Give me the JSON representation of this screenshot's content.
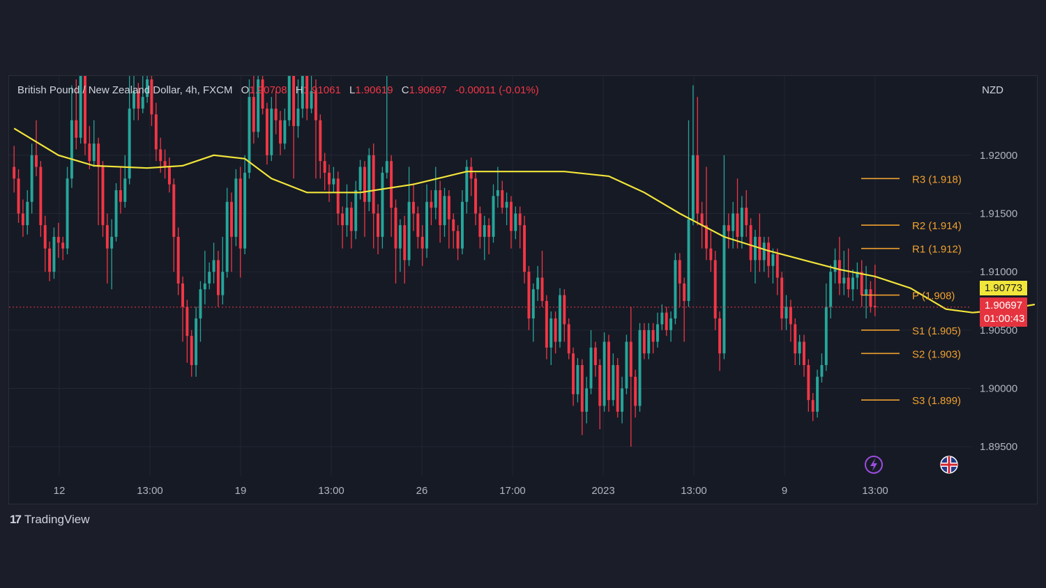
{
  "legend": {
    "symbol": "British Pound / New Zealand Dollar, 4h, FXCM",
    "open_label": "O",
    "open": "1.90708",
    "high_label": "H",
    "high": "1.91061",
    "low_label": "L",
    "low": "1.90619",
    "close_label": "C",
    "close": "1.90697",
    "change": "-0.00011 (-0.01%)"
  },
  "currency": "NZD",
  "price_tags": {
    "ma_value": "1.90773",
    "close_value": "1.90697",
    "countdown": "01:00:43"
  },
  "branding": {
    "logo_text": "TradingView",
    "logo_mark": "17"
  },
  "colors": {
    "up": "#26a69a",
    "down": "#f23645",
    "ma": "#f2e53a",
    "pivot_lines": "#f0a12e",
    "grid": "#232734",
    "background": "#161a25"
  },
  "chart_data": {
    "type": "candlestick",
    "timeframe": "4h",
    "y_axis": {
      "ticks": [
        "1.92000",
        "1.91500",
        "1.91000",
        "1.90500",
        "1.90000",
        "1.89500"
      ],
      "ylim": [
        1.8925,
        1.9268
      ]
    },
    "x_axis": {
      "ticks": [
        "12",
        "13:00",
        "19",
        "13:00",
        "26",
        "17:00",
        "2023",
        "13:00",
        "9",
        "13:00"
      ]
    },
    "pivot_levels": [
      {
        "label": "R3 (1.918)",
        "value": 1.918
      },
      {
        "label": "R2 (1.914)",
        "value": 1.914
      },
      {
        "label": "R1 (1.912)",
        "value": 1.912
      },
      {
        "label": "P (1.908)",
        "value": 1.908
      },
      {
        "label": "S1 (1.905)",
        "value": 1.905
      },
      {
        "label": "S2 (1.903)",
        "value": 1.903
      },
      {
        "label": "S3 (1.899)",
        "value": 1.899
      }
    ],
    "current_price": 1.90697,
    "moving_average": [
      [
        0,
        1.9223
      ],
      [
        10,
        1.92
      ],
      [
        18,
        1.9191
      ],
      [
        30,
        1.9189
      ],
      [
        38,
        1.9191
      ],
      [
        45,
        1.92
      ],
      [
        52,
        1.9197
      ],
      [
        58,
        1.918
      ],
      [
        66,
        1.9168
      ],
      [
        78,
        1.9168
      ],
      [
        90,
        1.9175
      ],
      [
        102,
        1.9186
      ],
      [
        112,
        1.9186
      ],
      [
        124,
        1.9186
      ],
      [
        134,
        1.9182
      ],
      [
        142,
        1.9168
      ],
      [
        150,
        1.915
      ],
      [
        160,
        1.913
      ],
      [
        170,
        1.9118
      ],
      [
        178,
        1.911
      ],
      [
        186,
        1.9102
      ],
      [
        194,
        1.9096
      ],
      [
        202,
        1.9086
      ],
      [
        210,
        1.9068
      ],
      [
        216,
        1.9065
      ],
      [
        224,
        1.9068
      ],
      [
        230,
        1.9072
      ]
    ],
    "candles": [
      [
        1.919,
        1.918,
        1.9208,
        1.9168
      ],
      [
        1.918,
        1.915,
        1.9188,
        1.9142
      ],
      [
        1.915,
        1.914,
        1.9162,
        1.913
      ],
      [
        1.914,
        1.916,
        1.917,
        1.9132
      ],
      [
        1.916,
        1.92,
        1.921,
        1.915
      ],
      [
        1.92,
        1.919,
        1.923,
        1.9182
      ],
      [
        1.919,
        1.914,
        1.9195,
        1.913
      ],
      [
        1.914,
        1.912,
        1.9148,
        1.91
      ],
      [
        1.912,
        1.91,
        1.9126,
        1.9092
      ],
      [
        1.91,
        1.913,
        1.9138,
        1.9094
      ],
      [
        1.913,
        1.9125,
        1.9142,
        1.9112
      ],
      [
        1.9125,
        1.912,
        1.913,
        1.911
      ],
      [
        1.912,
        1.918,
        1.919,
        1.9115
      ],
      [
        1.918,
        1.923,
        1.926,
        1.9172
      ],
      [
        1.923,
        1.9215,
        1.9265,
        1.9205
      ],
      [
        1.9215,
        1.927,
        1.928,
        1.921
      ],
      [
        1.927,
        1.921,
        1.9275,
        1.92
      ],
      [
        1.921,
        1.9195,
        1.9225,
        1.9188
      ],
      [
        1.9195,
        1.921,
        1.923,
        1.919
      ],
      [
        1.921,
        1.919,
        1.9215,
        1.914
      ],
      [
        1.919,
        1.914,
        1.9195,
        1.913
      ],
      [
        1.914,
        1.912,
        1.915,
        1.909
      ],
      [
        1.912,
        1.913,
        1.9145,
        1.9085
      ],
      [
        1.913,
        1.917,
        1.9176,
        1.9126
      ],
      [
        1.917,
        1.916,
        1.919,
        1.915
      ],
      [
        1.916,
        1.918,
        1.92,
        1.9155
      ],
      [
        1.918,
        1.924,
        1.927,
        1.9175
      ],
      [
        1.924,
        1.9255,
        1.927,
        1.923
      ],
      [
        1.9255,
        1.924,
        1.9262,
        1.923
      ],
      [
        1.924,
        1.925,
        1.9268,
        1.9236
      ],
      [
        1.925,
        1.9265,
        1.927,
        1.9245
      ],
      [
        1.9265,
        1.9235,
        1.929,
        1.9225
      ],
      [
        1.9235,
        1.9205,
        1.9245,
        1.9195
      ],
      [
        1.9205,
        1.9195,
        1.9215,
        1.9185
      ],
      [
        1.9195,
        1.919,
        1.9205,
        1.918
      ],
      [
        1.919,
        1.9175,
        1.9198,
        1.9168
      ],
      [
        1.9175,
        1.913,
        1.918,
        1.91
      ],
      [
        1.913,
        1.909,
        1.9138,
        1.908
      ],
      [
        1.909,
        1.907,
        1.9096,
        1.904
      ],
      [
        1.907,
        1.9045,
        1.9076,
        1.9022
      ],
      [
        1.9045,
        1.902,
        1.905,
        1.901
      ],
      [
        1.902,
        1.906,
        1.907,
        1.901
      ],
      [
        1.906,
        1.9085,
        1.9092,
        1.904
      ],
      [
        1.9085,
        1.909,
        1.9118,
        1.9072
      ],
      [
        1.909,
        1.91,
        1.9108,
        1.9085
      ],
      [
        1.91,
        1.911,
        1.9125,
        1.909
      ],
      [
        1.911,
        1.908,
        1.9118,
        1.907
      ],
      [
        1.908,
        1.91,
        1.913,
        1.9072
      ],
      [
        1.91,
        1.916,
        1.9172,
        1.9095
      ],
      [
        1.916,
        1.913,
        1.9168,
        1.91
      ],
      [
        1.913,
        1.918,
        1.9188,
        1.9122
      ],
      [
        1.918,
        1.912,
        1.919,
        1.9095
      ],
      [
        1.912,
        1.9185,
        1.92,
        1.9115
      ],
      [
        1.9185,
        1.925,
        1.9265,
        1.918
      ],
      [
        1.925,
        1.922,
        1.9275,
        1.921
      ],
      [
        1.922,
        1.9265,
        1.929,
        1.9215
      ],
      [
        1.9265,
        1.924,
        1.927,
        1.9235
      ],
      [
        1.924,
        1.92,
        1.9245,
        1.9192
      ],
      [
        1.92,
        1.924,
        1.925,
        1.9195
      ],
      [
        1.924,
        1.923,
        1.9255,
        1.9218
      ],
      [
        1.923,
        1.921,
        1.9238,
        1.92
      ],
      [
        1.921,
        1.923,
        1.924,
        1.9205
      ],
      [
        1.923,
        1.928,
        1.929,
        1.9225
      ],
      [
        1.928,
        1.9225,
        1.9286,
        1.918
      ],
      [
        1.9225,
        1.924,
        1.9265,
        1.9215
      ],
      [
        1.924,
        1.9275,
        1.929,
        1.9232
      ],
      [
        1.9275,
        1.924,
        1.929,
        1.923
      ],
      [
        1.924,
        1.9255,
        1.929,
        1.9236
      ],
      [
        1.9255,
        1.923,
        1.9265,
        1.918
      ],
      [
        1.923,
        1.9195,
        1.9235,
        1.918
      ],
      [
        1.9195,
        1.9185,
        1.9202,
        1.917
      ],
      [
        1.9185,
        1.9175,
        1.9192,
        1.916
      ],
      [
        1.9175,
        1.918,
        1.919,
        1.9168
      ],
      [
        1.918,
        1.915,
        1.9186,
        1.914
      ],
      [
        1.915,
        1.914,
        1.9156,
        1.912
      ],
      [
        1.914,
        1.9155,
        1.9175,
        1.913
      ],
      [
        1.9155,
        1.9135,
        1.916,
        1.912
      ],
      [
        1.9135,
        1.917,
        1.9178,
        1.9128
      ],
      [
        1.917,
        1.919,
        1.9196,
        1.9162
      ],
      [
        1.919,
        1.916,
        1.9195,
        1.913
      ],
      [
        1.916,
        1.92,
        1.9206,
        1.9152
      ],
      [
        1.92,
        1.915,
        1.921,
        1.912
      ],
      [
        1.915,
        1.913,
        1.9158,
        1.9115
      ],
      [
        1.913,
        1.9185,
        1.919,
        1.912
      ],
      [
        1.9185,
        1.9195,
        1.927,
        1.918
      ],
      [
        1.9195,
        1.9155,
        1.92,
        1.913
      ],
      [
        1.9155,
        1.912,
        1.9162,
        1.909
      ],
      [
        1.912,
        1.914,
        1.9145,
        1.91
      ],
      [
        1.914,
        1.911,
        1.9148,
        1.909
      ],
      [
        1.911,
        1.916,
        1.919,
        1.9105
      ],
      [
        1.916,
        1.915,
        1.9176,
        1.9135
      ],
      [
        1.915,
        1.913,
        1.9156,
        1.912
      ],
      [
        1.913,
        1.912,
        1.914,
        1.9105
      ],
      [
        1.912,
        1.916,
        1.9175,
        1.9112
      ],
      [
        1.916,
        1.9155,
        1.917,
        1.914
      ],
      [
        1.9155,
        1.917,
        1.919,
        1.9145
      ],
      [
        1.917,
        1.914,
        1.9178,
        1.9125
      ],
      [
        1.914,
        1.9165,
        1.9172,
        1.913
      ],
      [
        1.9165,
        1.9145,
        1.917,
        1.912
      ],
      [
        1.9145,
        1.9135,
        1.915,
        1.912
      ],
      [
        1.9135,
        1.912,
        1.914,
        1.911
      ],
      [
        1.912,
        1.916,
        1.917,
        1.9115
      ],
      [
        1.916,
        1.919,
        1.9196,
        1.915
      ],
      [
        1.919,
        1.918,
        1.9198,
        1.9165
      ],
      [
        1.918,
        1.915,
        1.9185,
        1.914
      ],
      [
        1.915,
        1.913,
        1.9156,
        1.912
      ],
      [
        1.913,
        1.914,
        1.9148,
        1.911
      ],
      [
        1.914,
        1.913,
        1.9146,
        1.9115
      ],
      [
        1.913,
        1.9165,
        1.9175,
        1.9125
      ],
      [
        1.9165,
        1.917,
        1.919,
        1.9155
      ],
      [
        1.917,
        1.9155,
        1.9178,
        1.915
      ],
      [
        1.9155,
        1.916,
        1.9168,
        1.914
      ],
      [
        1.916,
        1.9135,
        1.9165,
        1.912
      ],
      [
        1.9135,
        1.915,
        1.9156,
        1.9128
      ],
      [
        1.915,
        1.914,
        1.9156,
        1.912
      ],
      [
        1.914,
        1.91,
        1.9148,
        1.909
      ],
      [
        1.91,
        1.906,
        1.9105,
        1.905
      ],
      [
        1.906,
        1.9085,
        1.909,
        1.904
      ],
      [
        1.9085,
        1.9095,
        1.9105,
        1.9075
      ],
      [
        1.9095,
        1.9075,
        1.9118,
        1.907
      ],
      [
        1.9075,
        1.9035,
        1.908,
        1.9025
      ],
      [
        1.9035,
        1.906,
        1.9066,
        1.902
      ],
      [
        1.906,
        1.904,
        1.9066,
        1.903
      ],
      [
        1.904,
        1.908,
        1.9086,
        1.9035
      ],
      [
        1.908,
        1.9055,
        1.9085,
        1.904
      ],
      [
        1.9055,
        1.903,
        1.906,
        1.9025
      ],
      [
        1.903,
        1.8995,
        1.9035,
        1.8985
      ],
      [
        1.8995,
        1.902,
        1.9026,
        1.8988
      ],
      [
        1.902,
        1.898,
        1.9025,
        1.896
      ],
      [
        1.898,
        1.9,
        1.901,
        1.897
      ],
      [
        1.9,
        1.9035,
        1.905,
        1.8995
      ],
      [
        1.9035,
        1.902,
        1.904,
        1.901
      ],
      [
        1.902,
        1.8985,
        1.9025,
        1.8965
      ],
      [
        1.8985,
        1.904,
        1.9048,
        1.898
      ],
      [
        1.904,
        1.899,
        1.9046,
        1.898
      ],
      [
        1.899,
        1.902,
        1.903,
        1.8985
      ],
      [
        1.902,
        1.898,
        1.9026,
        1.8975
      ],
      [
        1.898,
        1.9,
        1.901,
        1.897
      ],
      [
        1.9,
        1.904,
        1.9046,
        1.8995
      ],
      [
        1.904,
        1.901,
        1.907,
        1.895
      ],
      [
        1.901,
        1.8985,
        1.9016,
        1.8975
      ],
      [
        1.8985,
        1.905,
        1.9056,
        1.898
      ],
      [
        1.905,
        1.903,
        1.9056,
        1.9025
      ],
      [
        1.903,
        1.905,
        1.9056,
        1.9025
      ],
      [
        1.905,
        1.904,
        1.9056,
        1.903
      ],
      [
        1.904,
        1.9055,
        1.9065,
        1.9035
      ],
      [
        1.9055,
        1.9065,
        1.9072,
        1.905
      ],
      [
        1.9065,
        1.905,
        1.907,
        1.9045
      ],
      [
        1.905,
        1.906,
        1.9066,
        1.904
      ],
      [
        1.906,
        1.911,
        1.9116,
        1.9055
      ],
      [
        1.911,
        1.909,
        1.9116,
        1.907
      ],
      [
        1.909,
        1.9075,
        1.9095,
        1.904
      ],
      [
        1.9075,
        1.9145,
        1.923,
        1.907
      ],
      [
        1.9145,
        1.92,
        1.926,
        1.914
      ],
      [
        1.92,
        1.915,
        1.925,
        1.914
      ],
      [
        1.915,
        1.914,
        1.916,
        1.912
      ],
      [
        1.914,
        1.912,
        1.919,
        1.911
      ],
      [
        1.912,
        1.911,
        1.9135,
        1.91
      ],
      [
        1.911,
        1.906,
        1.9118,
        1.905
      ],
      [
        1.906,
        1.903,
        1.9066,
        1.9015
      ],
      [
        1.903,
        1.914,
        1.92,
        1.9025
      ],
      [
        1.914,
        1.9135,
        1.915,
        1.912
      ],
      [
        1.9135,
        1.915,
        1.916,
        1.912
      ],
      [
        1.915,
        1.913,
        1.918,
        1.912
      ],
      [
        1.913,
        1.9155,
        1.9165,
        1.912
      ],
      [
        1.9155,
        1.914,
        1.917,
        1.913
      ],
      [
        1.914,
        1.911,
        1.9146,
        1.91
      ],
      [
        1.911,
        1.913,
        1.9136,
        1.909
      ],
      [
        1.913,
        1.911,
        1.915,
        1.91
      ],
      [
        1.911,
        1.9125,
        1.913,
        1.91
      ],
      [
        1.9125,
        1.9105,
        1.913,
        1.9095
      ],
      [
        1.9105,
        1.9115,
        1.912,
        1.909
      ],
      [
        1.9115,
        1.9095,
        1.912,
        1.908
      ],
      [
        1.9095,
        1.906,
        1.91,
        1.905
      ],
      [
        1.906,
        1.907,
        1.908,
        1.905
      ],
      [
        1.907,
        1.9055,
        1.9076,
        1.904
      ],
      [
        1.9055,
        1.903,
        1.906,
        1.902
      ],
      [
        1.903,
        1.904,
        1.9046,
        1.902
      ],
      [
        1.904,
        1.902,
        1.9046,
        1.901
      ],
      [
        1.902,
        1.899,
        1.9025,
        1.898
      ],
      [
        1.899,
        1.898,
        1.8996,
        1.8972
      ],
      [
        1.898,
        1.901,
        1.9016,
        1.8975
      ],
      [
        1.901,
        1.902,
        1.903,
        1.9005
      ],
      [
        1.902,
        1.907,
        1.909,
        1.9015
      ],
      [
        1.907,
        1.91,
        1.9106,
        1.906
      ],
      [
        1.91,
        1.911,
        1.912,
        1.909
      ],
      [
        1.911,
        1.909,
        1.913,
        1.908
      ],
      [
        1.909,
        1.9095,
        1.9118,
        1.908
      ],
      [
        1.9095,
        1.9085,
        1.912,
        1.9078
      ],
      [
        1.9085,
        1.9095,
        1.9102,
        1.9075
      ],
      [
        1.9095,
        1.91,
        1.9108,
        1.9085
      ],
      [
        1.91,
        1.908,
        1.911,
        1.907
      ],
      [
        1.908,
        1.9085,
        1.9105,
        1.906
      ],
      [
        1.9085,
        1.907,
        1.9092,
        1.9065
      ],
      [
        1.90708,
        1.90697,
        1.91061,
        1.90619
      ]
    ]
  }
}
